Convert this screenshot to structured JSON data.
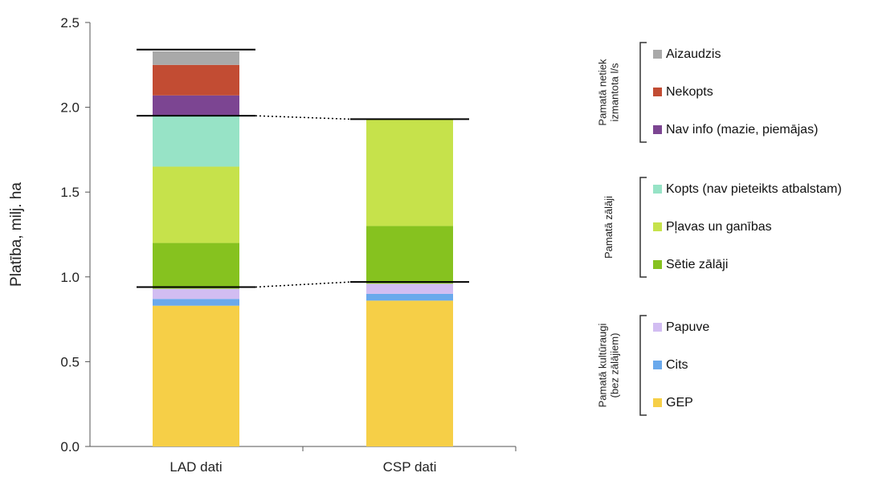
{
  "colors": {
    "GEP": "#f6cf47",
    "Cits": "#6aa9ec",
    "Papuve": "#d2bdf2",
    "Setie": "#86c21f",
    "Plavas": "#c6e24b",
    "Kopts": "#97e3c6",
    "NavInfo": "#7c4592",
    "Nekopts": "#c24c33",
    "Aizaudzis": "#a9a9a9"
  },
  "chart_data": {
    "type": "bar",
    "stacked": true,
    "categories": [
      "LAD dati",
      "CSP dati"
    ],
    "ylabel": "Platība, milj. ha",
    "ylim": [
      0,
      2.5
    ],
    "yticks": [
      "0.0",
      "0.5",
      "1.0",
      "1.5",
      "2.0",
      "2.5"
    ],
    "series": [
      {
        "name": "GEP",
        "values": [
          0.83,
          0.86
        ]
      },
      {
        "name": "Cits",
        "values": [
          0.04,
          0.04
        ]
      },
      {
        "name": "Papuve",
        "values": [
          0.06,
          0.06
        ]
      },
      {
        "name": "Sētie zālāji",
        "values": [
          0.27,
          0.34
        ]
      },
      {
        "name": "Pļavas un ganības",
        "values": [
          0.45,
          0.63
        ]
      },
      {
        "name": "Kopts (nav pieteikts atbalstam)",
        "values": [
          0.3,
          0
        ]
      },
      {
        "name": "Nav info (mazie, piemājas)",
        "values": [
          0.12,
          0
        ]
      },
      {
        "name": "Nekopts",
        "values": [
          0.18,
          0
        ]
      },
      {
        "name": "Aizaudzis",
        "values": [
          0.08,
          0
        ]
      }
    ],
    "boundaries": {
      "LAD dati": [
        0.94,
        1.95,
        2.34
      ],
      "CSP dati": [
        0.97,
        1.93
      ]
    },
    "legend_groups": [
      {
        "label_lines": [
          "Pamatā netiek",
          "izmantota l/s"
        ],
        "items": [
          "Aizaudzis",
          "Nekopts",
          "Nav info (mazie, piemājas)"
        ]
      },
      {
        "label_lines": [
          "Pamatā zālāji"
        ],
        "items": [
          "Kopts (nav pieteikts atbalstam)",
          "Pļavas un ganības",
          "Sētie zālāji"
        ]
      },
      {
        "label_lines": [
          "Pamatā kultūraugi",
          "(bez zālājiem)"
        ],
        "items": [
          "Papuve",
          "Cits",
          "GEP"
        ]
      }
    ]
  }
}
